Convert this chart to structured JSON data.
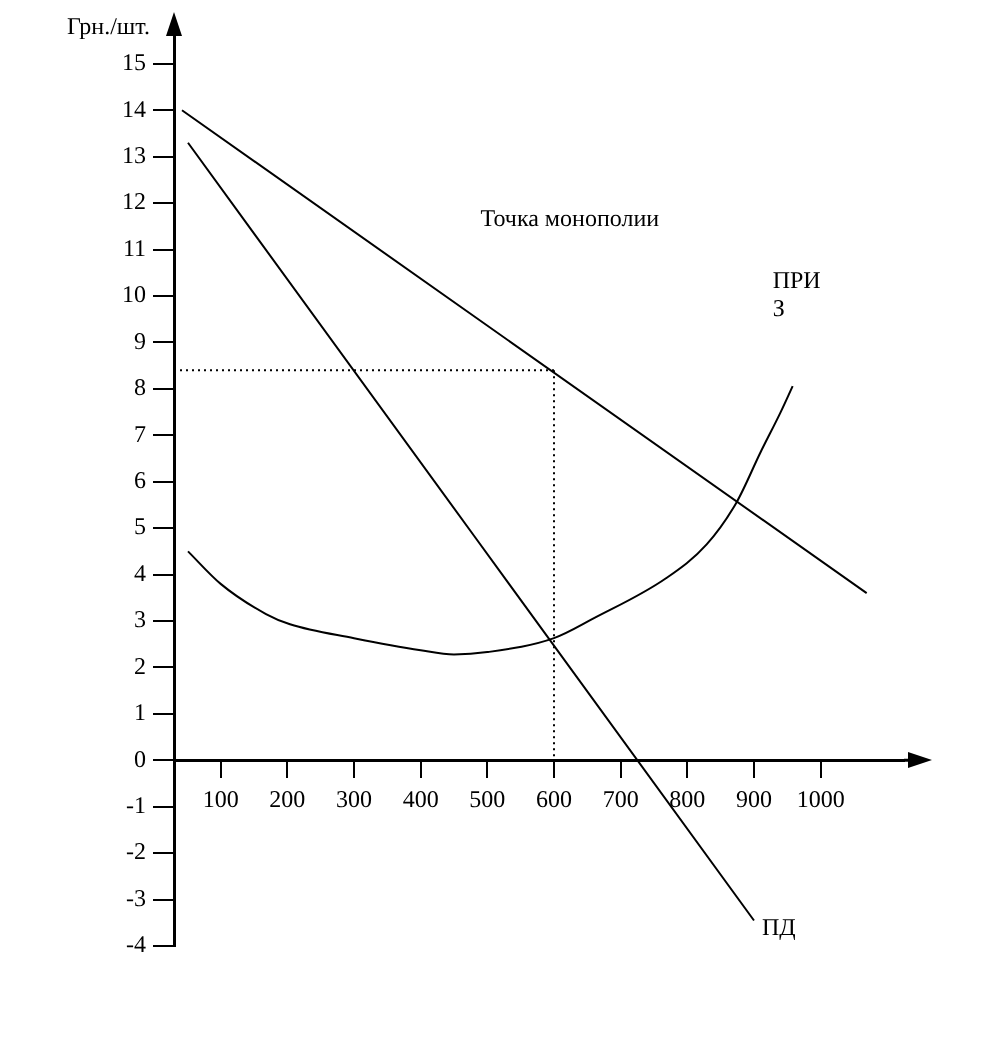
{
  "chart_data": {
    "type": "line",
    "ylabel": "Грн./шт.",
    "annotations": [
      "Точка монополии"
    ],
    "xlim": [
      30,
      1125
    ],
    "ylim": [
      -4,
      15.6
    ],
    "xticks": [
      100,
      200,
      300,
      400,
      500,
      600,
      700,
      800,
      900,
      1000
    ],
    "yticks": [
      -4,
      -3,
      -2,
      -1,
      0,
      1,
      2,
      3,
      4,
      5,
      6,
      7,
      8,
      9,
      10,
      11,
      12,
      13,
      14,
      15
    ],
    "grid": false,
    "legend": false,
    "marker": "none",
    "line_style": "solid",
    "series": [
      {
        "color": "#000000",
        "x": [
          42,
          1069
        ],
        "values": [
          14.0,
          3.6
        ]
      },
      {
        "name": "ПД",
        "color": "#000000",
        "x": [
          51,
          900
        ],
        "values": [
          13.3,
          -3.45
        ]
      },
      {
        "name": "ПРИ З",
        "color": "#000000",
        "x": [
          51,
          100,
          168,
          204,
          300,
          400,
          450,
          500,
          600,
          660,
          768,
          829,
          874,
          910,
          940,
          958
        ],
        "values": [
          4.5,
          3.8,
          3.15,
          2.93,
          2.63,
          2.37,
          2.28,
          2.33,
          2.63,
          3.06,
          3.92,
          4.65,
          5.56,
          6.64,
          7.5,
          8.06
        ]
      }
    ],
    "ref_lines": [
      {
        "axis": "y",
        "value": 8.4,
        "line_style": "dotted",
        "color": "#000000"
      },
      {
        "axis": "x",
        "value": 600,
        "line_style": "dotted",
        "color": "#000000"
      }
    ]
  }
}
